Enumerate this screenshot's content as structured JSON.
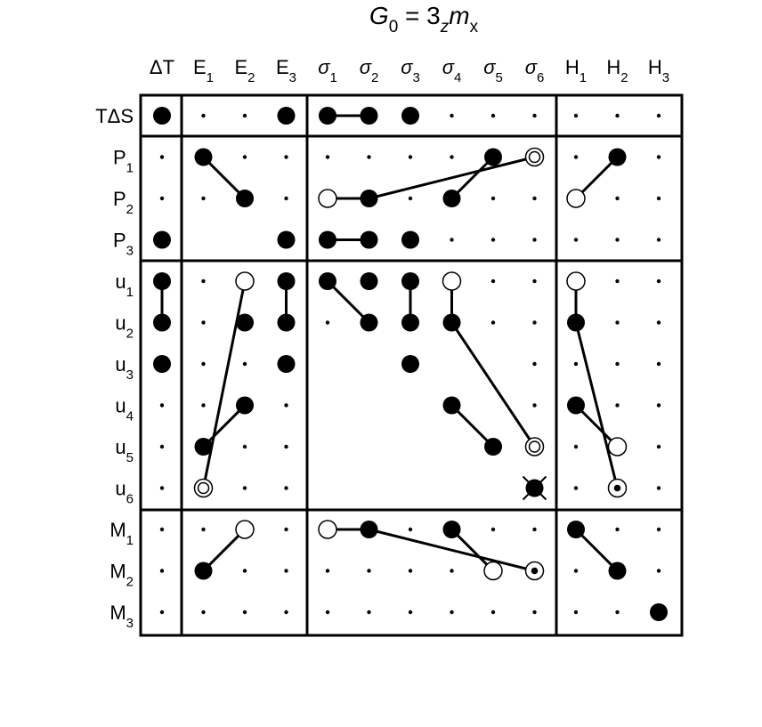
{
  "title": {
    "main": "G",
    "main_sub": "0",
    "eq": " = 3",
    "z": "z",
    "m": "m",
    "x": "x"
  },
  "columns": [
    {
      "base": "ΔT",
      "sub": "",
      "greek": false
    },
    {
      "base": "E",
      "sub": "1",
      "greek": false
    },
    {
      "base": "E",
      "sub": "2",
      "greek": false
    },
    {
      "base": "E",
      "sub": "3",
      "greek": false
    },
    {
      "base": "σ",
      "sub": "1",
      "greek": true
    },
    {
      "base": "σ",
      "sub": "2",
      "greek": true
    },
    {
      "base": "σ",
      "sub": "3",
      "greek": true
    },
    {
      "base": "σ",
      "sub": "4",
      "greek": true
    },
    {
      "base": "σ",
      "sub": "5",
      "greek": true
    },
    {
      "base": "σ",
      "sub": "6",
      "greek": true
    },
    {
      "base": "H",
      "sub": "1",
      "greek": false
    },
    {
      "base": "H",
      "sub": "2",
      "greek": false
    },
    {
      "base": "H",
      "sub": "3",
      "greek": false
    }
  ],
  "rows": [
    {
      "base": "TΔS",
      "sub": ""
    },
    {
      "base": "P",
      "sub": "1"
    },
    {
      "base": "P",
      "sub": "2"
    },
    {
      "base": "P",
      "sub": "3"
    },
    {
      "base": "u",
      "sub": "1"
    },
    {
      "base": "u",
      "sub": "2"
    },
    {
      "base": "u",
      "sub": "3"
    },
    {
      "base": "u",
      "sub": "4"
    },
    {
      "base": "u",
      "sub": "5"
    },
    {
      "base": "u",
      "sub": "6"
    },
    {
      "base": "M",
      "sub": "1"
    },
    {
      "base": "M",
      "sub": "2"
    },
    {
      "base": "M",
      "sub": "3"
    }
  ],
  "empty_blocks": [
    {
      "rows": [
        3,
        3
      ],
      "cols": [
        1,
        2
      ]
    },
    {
      "rows": [
        6,
        9
      ],
      "cols": [
        4,
        8
      ]
    }
  ],
  "cells": [
    {
      "r": 0,
      "c": 0,
      "m": "filled"
    },
    {
      "r": 0,
      "c": 3,
      "m": "filled"
    },
    {
      "r": 0,
      "c": 4,
      "m": "filled"
    },
    {
      "r": 0,
      "c": 5,
      "m": "filled"
    },
    {
      "r": 0,
      "c": 6,
      "m": "filled"
    },
    {
      "r": 1,
      "c": 1,
      "m": "filled"
    },
    {
      "r": 1,
      "c": 8,
      "m": "filled"
    },
    {
      "r": 1,
      "c": 9,
      "m": "double-ring"
    },
    {
      "r": 1,
      "c": 11,
      "m": "filled"
    },
    {
      "r": 2,
      "c": 2,
      "m": "filled"
    },
    {
      "r": 2,
      "c": 4,
      "m": "open"
    },
    {
      "r": 2,
      "c": 5,
      "m": "filled"
    },
    {
      "r": 2,
      "c": 7,
      "m": "filled"
    },
    {
      "r": 2,
      "c": 10,
      "m": "open"
    },
    {
      "r": 3,
      "c": 0,
      "m": "filled"
    },
    {
      "r": 3,
      "c": 3,
      "m": "filled"
    },
    {
      "r": 3,
      "c": 4,
      "m": "filled"
    },
    {
      "r": 3,
      "c": 5,
      "m": "filled"
    },
    {
      "r": 3,
      "c": 6,
      "m": "filled"
    },
    {
      "r": 4,
      "c": 0,
      "m": "filled"
    },
    {
      "r": 4,
      "c": 2,
      "m": "open"
    },
    {
      "r": 4,
      "c": 3,
      "m": "filled"
    },
    {
      "r": 4,
      "c": 4,
      "m": "filled"
    },
    {
      "r": 4,
      "c": 5,
      "m": "filled"
    },
    {
      "r": 4,
      "c": 6,
      "m": "filled"
    },
    {
      "r": 4,
      "c": 7,
      "m": "open"
    },
    {
      "r": 4,
      "c": 10,
      "m": "open"
    },
    {
      "r": 5,
      "c": 0,
      "m": "filled"
    },
    {
      "r": 5,
      "c": 2,
      "m": "filled"
    },
    {
      "r": 5,
      "c": 3,
      "m": "filled"
    },
    {
      "r": 5,
      "c": 5,
      "m": "filled"
    },
    {
      "r": 5,
      "c": 6,
      "m": "filled"
    },
    {
      "r": 5,
      "c": 7,
      "m": "filled"
    },
    {
      "r": 5,
      "c": 10,
      "m": "filled"
    },
    {
      "r": 6,
      "c": 0,
      "m": "filled"
    },
    {
      "r": 6,
      "c": 3,
      "m": "filled"
    },
    {
      "r": 6,
      "c": 6,
      "m": "filled"
    },
    {
      "r": 7,
      "c": 2,
      "m": "filled"
    },
    {
      "r": 7,
      "c": 7,
      "m": "filled"
    },
    {
      "r": 7,
      "c": 10,
      "m": "filled"
    },
    {
      "r": 8,
      "c": 1,
      "m": "filled"
    },
    {
      "r": 8,
      "c": 8,
      "m": "filled"
    },
    {
      "r": 8,
      "c": 9,
      "m": "double-ring"
    },
    {
      "r": 8,
      "c": 11,
      "m": "open"
    },
    {
      "r": 9,
      "c": 1,
      "m": "double-ring"
    },
    {
      "r": 9,
      "c": 9,
      "m": "crossed"
    },
    {
      "r": 9,
      "c": 11,
      "m": "ring-dot"
    },
    {
      "r": 10,
      "c": 2,
      "m": "open"
    },
    {
      "r": 10,
      "c": 4,
      "m": "open"
    },
    {
      "r": 10,
      "c": 5,
      "m": "filled"
    },
    {
      "r": 10,
      "c": 7,
      "m": "filled"
    },
    {
      "r": 10,
      "c": 10,
      "m": "filled"
    },
    {
      "r": 11,
      "c": 1,
      "m": "filled"
    },
    {
      "r": 11,
      "c": 8,
      "m": "open"
    },
    {
      "r": 11,
      "c": 9,
      "m": "ring-dot"
    },
    {
      "r": 11,
      "c": 11,
      "m": "filled"
    },
    {
      "r": 12,
      "c": 12,
      "m": "filled"
    }
  ],
  "links": [
    [
      0,
      4,
      0,
      5
    ],
    [
      1,
      1,
      2,
      2
    ],
    [
      2,
      4,
      2,
      5
    ],
    [
      2,
      5,
      1,
      9
    ],
    [
      2,
      7,
      1,
      8
    ],
    [
      2,
      10,
      1,
      11
    ],
    [
      3,
      4,
      3,
      5
    ],
    [
      4,
      0,
      5,
      0
    ],
    [
      4,
      2,
      9,
      1
    ],
    [
      4,
      3,
      5,
      3
    ],
    [
      4,
      4,
      5,
      5
    ],
    [
      4,
      6,
      5,
      6
    ],
    [
      4,
      7,
      5,
      7
    ],
    [
      5,
      7,
      8,
      9
    ],
    [
      4,
      10,
      5,
      10
    ],
    [
      7,
      2,
      8,
      1
    ],
    [
      7,
      7,
      8,
      8
    ],
    [
      5,
      10,
      9,
      11
    ],
    [
      7,
      10,
      8,
      11
    ],
    [
      10,
      4,
      10,
      5
    ],
    [
      10,
      5,
      11,
      9
    ],
    [
      10,
      7,
      11,
      8
    ],
    [
      10,
      2,
      11,
      1
    ],
    [
      10,
      10,
      11,
      11
    ]
  ]
}
